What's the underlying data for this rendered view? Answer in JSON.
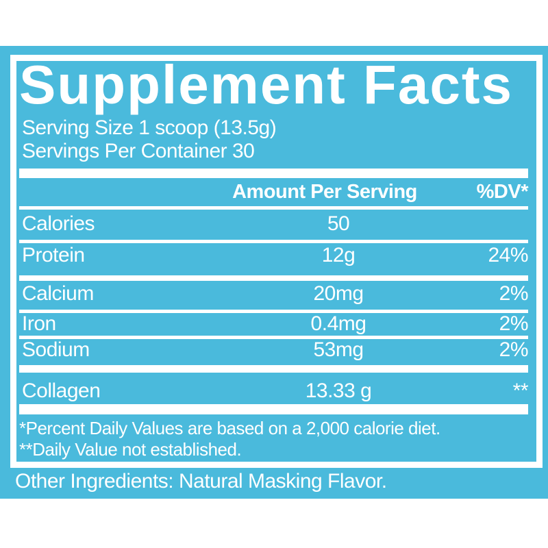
{
  "label": {
    "title": "Supplement Facts",
    "serving_size": "Serving Size 1 scoop (13.5g)",
    "servings_per_container": "Servings Per Container 30",
    "columns": {
      "amount": "Amount Per Serving",
      "dv": "%DV*"
    },
    "rows": [
      {
        "name": "Calories",
        "amount": "50",
        "dv": ""
      },
      {
        "name": "Protein",
        "amount": "12g",
        "dv": "24%"
      },
      {
        "name": "Calcium",
        "amount": "20mg",
        "dv": "2%"
      },
      {
        "name": "Iron",
        "amount": "0.4mg",
        "dv": "2%"
      },
      {
        "name": "Sodium",
        "amount": "53mg",
        "dv": "2%"
      },
      {
        "name": "Collagen",
        "amount": "13.33 g",
        "dv": "**"
      }
    ],
    "footnotes": [
      "*Percent Daily Values are based on a 2,000 calorie diet.",
      "**Daily Value not established."
    ],
    "other_ingredients": "Other Ingredients: Natural Masking Flavor."
  },
  "colors": {
    "panel_blue": "#4ABADC",
    "text_white": "#FFFFFF"
  }
}
